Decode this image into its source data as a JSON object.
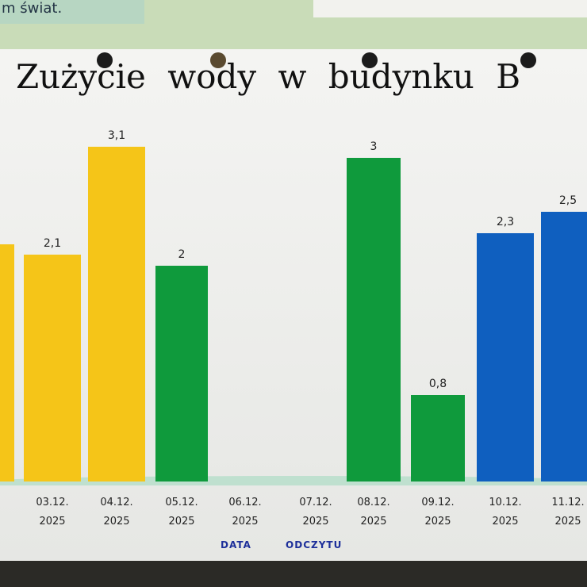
{
  "poster_fragment": "m świat.",
  "chart_data": {
    "type": "bar",
    "title": "Zużycie wody w budynku B",
    "x_label": "DATA ODCZYTU",
    "categories": [
      null,
      "03.12. 2025",
      "04.12. 2025",
      "05.12. 2025",
      "06.12. 2025",
      "07.12. 2025",
      "08.12. 2025",
      "09.12. 2025",
      "10.12. 2025",
      "11.12. 2025"
    ],
    "values": [
      2.2,
      2.1,
      3.1,
      2,
      null,
      null,
      3,
      0.8,
      2.3,
      2.5
    ],
    "value_labels": [
      null,
      "2,1",
      "3,1",
      "2",
      null,
      null,
      "3",
      "0,8",
      "2,3",
      "2,5"
    ],
    "colors": [
      "#f5c518",
      "#f5c518",
      "#f5c518",
      "#0f9a3c",
      null,
      null,
      "#0f9a3c",
      "#0f9a3c",
      "#0f5fbf",
      "#0f5fbf"
    ]
  }
}
